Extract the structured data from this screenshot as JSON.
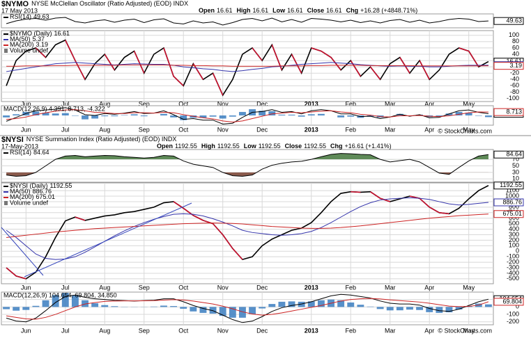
{
  "chart_data": [
    {
      "type": "line",
      "ylim": [
        30,
        70
      ],
      "yticks": [],
      "grid": true,
      "series": [
        {
          "name": "RSI(14)",
          "color": "#000000",
          "values": [
            42,
            50,
            55,
            57,
            52,
            58,
            60,
            48,
            44,
            50,
            53,
            46,
            52,
            55,
            45,
            53,
            56,
            44,
            41,
            50,
            44,
            47,
            38,
            45,
            54,
            57,
            50,
            58,
            47,
            54,
            46,
            57,
            55,
            52,
            47,
            52,
            45,
            50,
            44,
            51,
            54,
            46,
            52,
            44,
            48,
            54,
            57,
            55,
            48,
            49.63
          ]
        }
      ]
    },
    {
      "type": "line",
      "title": "$NYMO",
      "subtitle": "NYSE McClellan Oscillator (Ratio Adjusted) (EOD) INDX",
      "date": "17 May 2013",
      "quote": [
        {
          "label": "Open",
          "value": 16.61
        },
        {
          "label": "High",
          "value": 16.61
        },
        {
          "label": "Low",
          "value": 16.61
        },
        {
          "label": "Close",
          "value": 16.61
        },
        {
          "label": "Chg",
          "value": "+16.28 (+4848.71%)"
        }
      ],
      "note": "Volume undef",
      "ylim": [
        -110,
        115
      ],
      "yticks": [
        100,
        80,
        60,
        40,
        20,
        0,
        -20,
        -40,
        -60,
        -80,
        -100
      ],
      "grid": true,
      "categories": [
        null,
        null,
        "Jun",
        null,
        null,
        null,
        "Jul",
        null,
        null,
        null,
        "Aug",
        null,
        null,
        null,
        "Sep",
        null,
        null,
        null,
        "Oct",
        null,
        null,
        null,
        "Nov",
        null,
        null,
        null,
        "Dec",
        null,
        null,
        null,
        null,
        "2013",
        null,
        null,
        null,
        "Feb",
        null,
        null,
        null,
        "Mar",
        null,
        null,
        null,
        "Apr",
        null,
        null,
        null,
        "May",
        null,
        null
      ],
      "series": [
        {
          "name": "$NYMO (Daily)",
          "color": "#000000",
          "down_color": "#c8102e",
          "values": [
            -60,
            20,
            50,
            60,
            30,
            70,
            85,
            20,
            -40,
            10,
            40,
            -10,
            30,
            50,
            -20,
            40,
            60,
            -30,
            -60,
            10,
            -40,
            -20,
            -90,
            -40,
            40,
            60,
            20,
            70,
            -10,
            40,
            -20,
            60,
            50,
            30,
            -10,
            20,
            -30,
            0,
            -40,
            10,
            30,
            -20,
            20,
            -40,
            -10,
            40,
            60,
            50,
            0,
            16.61
          ]
        },
        {
          "name": "MA(50)",
          "color": "#3333aa",
          "values": [
            -15,
            -10,
            -5,
            0,
            5,
            10,
            12,
            14,
            12,
            10,
            8,
            6,
            8,
            10,
            9,
            8,
            8,
            5,
            0,
            -3,
            -6,
            -8,
            -12,
            -15,
            -12,
            -8,
            -5,
            0,
            2,
            5,
            8,
            10,
            12,
            14,
            12,
            10,
            7,
            5,
            3,
            2,
            3,
            2,
            2,
            0,
            0,
            2,
            4,
            5,
            5,
            5.37
          ]
        },
        {
          "name": "MA(200)",
          "color": "#cc2222",
          "values": [
            2,
            2,
            3,
            3,
            3,
            4,
            4,
            5,
            5,
            5,
            5,
            5,
            6,
            6,
            6,
            6,
            6,
            5,
            5,
            4,
            4,
            3,
            3,
            2,
            2,
            2,
            2,
            2,
            3,
            3,
            3,
            4,
            4,
            5,
            5,
            5,
            5,
            4,
            4,
            4,
            4,
            4,
            3,
            3,
            3,
            3,
            3,
            3,
            3,
            3.19
          ]
        }
      ]
    },
    {
      "type": "line",
      "legend": "MACD(12,26,9) 4.391, 8.713, -4.322",
      "source": "© StockCharts.com",
      "ylim": [
        -25,
        25
      ],
      "yticks": [],
      "grid": true,
      "categories": [
        null,
        null,
        "Jun",
        null,
        null,
        null,
        "Jul",
        null,
        null,
        null,
        "Aug",
        null,
        null,
        null,
        "Sep",
        null,
        null,
        null,
        "Oct",
        null,
        null,
        null,
        "Nov",
        null,
        null,
        null,
        "Dec",
        null,
        null,
        null,
        null,
        "2013",
        null,
        null,
        null,
        "Feb",
        null,
        null,
        null,
        "Mar",
        null,
        null,
        null,
        "Apr",
        null,
        null,
        null,
        "May",
        null,
        null
      ],
      "series": [
        {
          "style": "bar",
          "color": "#3a7dbf",
          "values": [
            -5,
            3,
            9,
            10,
            7,
            5,
            6,
            -1,
            -10,
            -8,
            -2,
            -2,
            1,
            3,
            -2,
            0,
            4,
            -5,
            -12,
            -6,
            -6,
            -3,
            -8,
            -3,
            9,
            16,
            12,
            11,
            2,
            2,
            -3,
            3,
            4,
            0,
            -5,
            -3,
            -6,
            -3,
            -5,
            0,
            4,
            -1,
            2,
            -4,
            -2,
            5,
            9,
            7,
            -1,
            -4.322
          ]
        },
        {
          "color": "#000000",
          "values": [
            -15,
            -5,
            5,
            12,
            14,
            16,
            20,
            14,
            2,
            0,
            5,
            3,
            6,
            10,
            5,
            6,
            12,
            2,
            -10,
            -8,
            -12,
            -12,
            -22,
            -20,
            -5,
            8,
            10,
            15,
            8,
            10,
            4,
            12,
            15,
            12,
            4,
            4,
            -3,
            -2,
            -8,
            -4,
            3,
            -2,
            2,
            -6,
            -5,
            4,
            12,
            14,
            8,
            4.391
          ]
        },
        {
          "color": "#cc2222",
          "values": [
            -10,
            -8,
            -4,
            2,
            7,
            11,
            14,
            15,
            12,
            8,
            7,
            5,
            5,
            7,
            7,
            6,
            8,
            7,
            2,
            -2,
            -6,
            -9,
            -14,
            -17,
            -14,
            -8,
            -2,
            4,
            6,
            8,
            7,
            9,
            11,
            12,
            9,
            7,
            3,
            1,
            -3,
            -4,
            -1,
            -1,
            0,
            -2,
            -3,
            -1,
            3,
            7,
            9,
            8.713
          ]
        }
      ]
    },
    {
      "type": "line",
      "ylim": [
        0,
        100
      ],
      "yticks": [
        70,
        50,
        30,
        10
      ],
      "grid": true,
      "overbought": 70,
      "oversold": 30,
      "overbought_color": "#5f8a58",
      "oversold_color": "#8a5a4c",
      "series": [
        {
          "name": "RSI(14)",
          "color": "#000000",
          "values": [
            22,
            18,
            20,
            30,
            50,
            70,
            80,
            82,
            78,
            80,
            82,
            81,
            78,
            76,
            74,
            76,
            82,
            80,
            65,
            55,
            50,
            45,
            30,
            20,
            18,
            22,
            40,
            52,
            58,
            62,
            64,
            70,
            78,
            85,
            88,
            87,
            85,
            84,
            70,
            62,
            66,
            70,
            62,
            45,
            28,
            24,
            45,
            65,
            80,
            84.64
          ]
        }
      ]
    },
    {
      "type": "line",
      "title": "$NYSI",
      "subtitle": "NYSE Summation Index (Ratio Adjusted) (EOD) INDX",
      "date": "17-May-2013",
      "quote": [
        {
          "label": "Open",
          "value": 1192.55
        },
        {
          "label": "High",
          "value": 1192.55
        },
        {
          "label": "Low",
          "value": 1192.55
        },
        {
          "label": "Close",
          "value": 1192.55
        },
        {
          "label": "Chg",
          "value": "+16.61 (+1.41%)"
        }
      ],
      "note": "Volume undef",
      "ylim": [
        -590,
        1240
      ],
      "yticks": [
        1100,
        1000,
        900,
        800,
        700,
        600,
        500,
        400,
        300,
        200,
        100,
        0,
        -100,
        -200,
        -300,
        -400,
        -500
      ],
      "grid": true,
      "categories": [
        null,
        null,
        "Jun",
        null,
        null,
        null,
        "Jul",
        null,
        null,
        null,
        "Aug",
        null,
        null,
        null,
        "Sep",
        null,
        null,
        null,
        "Oct",
        null,
        null,
        null,
        "Nov",
        null,
        null,
        null,
        "Dec",
        null,
        null,
        null,
        null,
        "2013",
        null,
        null,
        null,
        "Feb",
        null,
        null,
        null,
        "Mar",
        null,
        null,
        null,
        "Apr",
        null,
        null,
        null,
        "May",
        null,
        null
      ],
      "series": [
        {
          "name": "$NYSI (Daily)",
          "color": "#000000",
          "down_color": "#c8102e",
          "values": [
            -300,
            -450,
            -500,
            -380,
            -100,
            250,
            550,
            620,
            560,
            600,
            640,
            660,
            700,
            720,
            760,
            800,
            880,
            900,
            780,
            650,
            560,
            500,
            300,
            50,
            -150,
            -100,
            100,
            220,
            300,
            380,
            420,
            520,
            700,
            900,
            1050,
            1080,
            1070,
            1080,
            960,
            900,
            950,
            1000,
            960,
            800,
            700,
            680,
            780,
            950,
            1100,
            1192.55
          ]
        },
        {
          "name": "MA(50)",
          "color": "#3333aa",
          "values": [
            380,
            250,
            100,
            -50,
            -130,
            -150,
            -140,
            -100,
            -20,
            80,
            180,
            280,
            370,
            450,
            520,
            580,
            630,
            670,
            680,
            670,
            640,
            590,
            530,
            460,
            380,
            340,
            320,
            300,
            290,
            300,
            320,
            360,
            430,
            520,
            620,
            720,
            810,
            880,
            930,
            950,
            960,
            970,
            960,
            940,
            900,
            860,
            840,
            850,
            870,
            886.76
          ]
        },
        {
          "name": "MA(200)",
          "color": "#cc2222",
          "values": [
            250,
            270,
            290,
            310,
            330,
            350,
            365,
            380,
            395,
            410,
            420,
            430,
            440,
            450,
            460,
            470,
            480,
            490,
            500,
            505,
            510,
            512,
            510,
            505,
            495,
            480,
            465,
            450,
            440,
            430,
            420,
            415,
            415,
            420,
            430,
            445,
            460,
            480,
            500,
            520,
            540,
            560,
            580,
            600,
            615,
            630,
            645,
            655,
            665,
            675.01
          ]
        }
      ]
    },
    {
      "type": "line",
      "legend": "MACD(12,26,9) 104.654, 69.804, 34.850",
      "source": "© StockCharts.com",
      "ylim": [
        -240,
        200
      ],
      "yticks": [
        -200,
        -100,
        0,
        100
      ],
      "grid": true,
      "categories": [
        null,
        null,
        "Jun",
        null,
        null,
        null,
        "Jul",
        null,
        null,
        null,
        "Aug",
        null,
        null,
        null,
        "Sep",
        null,
        null,
        null,
        "Oct",
        null,
        null,
        null,
        "Nov",
        null,
        null,
        null,
        "Dec",
        null,
        null,
        null,
        null,
        "2013",
        null,
        null,
        null,
        "Feb",
        null,
        null,
        null,
        "Mar",
        null,
        null,
        null,
        "Apr",
        null,
        null,
        null,
        "May",
        null,
        null
      ],
      "series": [
        {
          "style": "bar",
          "color": "#3a7dbf",
          "values": [
            -30,
            -50,
            -40,
            15,
            90,
            160,
            190,
            160,
            90,
            50,
            25,
            10,
            3,
            -2,
            2,
            5,
            18,
            12,
            -24,
            -60,
            -80,
            -90,
            -120,
            -145,
            -145,
            -95,
            -20,
            40,
            70,
            75,
            70,
            75,
            90,
            100,
            90,
            60,
            30,
            5,
            -28,
            -46,
            -45,
            -36,
            -41,
            -70,
            -80,
            -72,
            -34,
            12,
            45,
            34.85
          ]
        },
        {
          "color": "#000000",
          "values": [
            -150,
            -190,
            -200,
            -150,
            -50,
            60,
            140,
            160,
            130,
            110,
            100,
            90,
            85,
            80,
            85,
            90,
            110,
            110,
            70,
            20,
            -20,
            -50,
            -110,
            -170,
            -210,
            -190,
            -130,
            -60,
            -10,
            20,
            40,
            70,
            110,
            150,
            170,
            160,
            140,
            120,
            80,
            50,
            40,
            40,
            25,
            -20,
            -50,
            -60,
            -30,
            20,
            70,
            104.654
          ]
        },
        {
          "color": "#cc2222",
          "values": [
            -120,
            -140,
            -160,
            -165,
            -140,
            -100,
            -50,
            0,
            40,
            60,
            75,
            80,
            82,
            82,
            83,
            85,
            92,
            98,
            94,
            80,
            60,
            40,
            10,
            -25,
            -65,
            -95,
            -110,
            -100,
            -80,
            -55,
            -30,
            -5,
            20,
            50,
            80,
            100,
            110,
            115,
            108,
            96,
            85,
            76,
            66,
            50,
            30,
            12,
            4,
            8,
            25,
            69.804
          ]
        }
      ]
    }
  ]
}
